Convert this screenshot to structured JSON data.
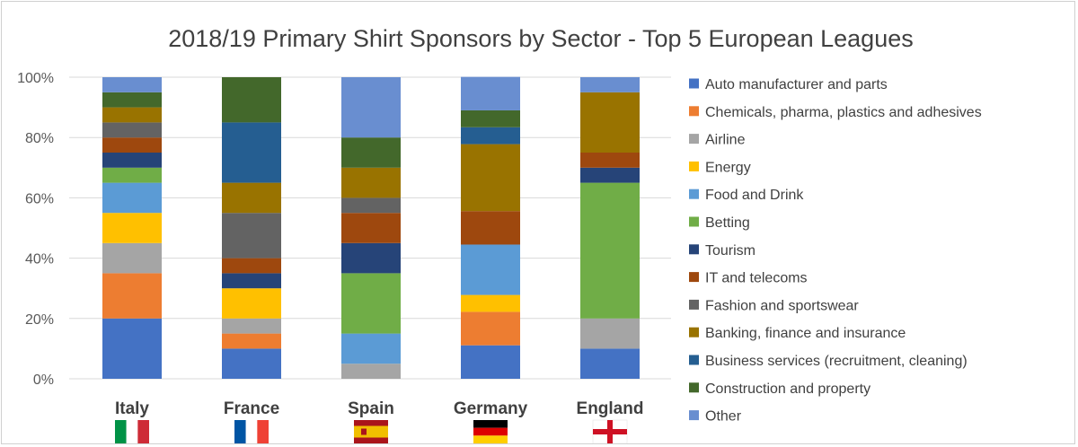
{
  "chart_data": {
    "type": "bar",
    "stacked": true,
    "title": "2018/19 Primary Shirt Sponsors by Sector - Top 5 European Leagues",
    "categories": [
      "Italy",
      "France",
      "Spain",
      "Germany",
      "England"
    ],
    "flags": [
      "italy-flag-icon",
      "france-flag-icon",
      "spain-flag-icon",
      "germany-flag-icon",
      "england-flag-icon"
    ],
    "ylim": [
      0,
      100
    ],
    "yticks": [
      "0%",
      "20%",
      "40%",
      "60%",
      "80%",
      "100%"
    ],
    "ytick_values": [
      0,
      20,
      40,
      60,
      80,
      100
    ],
    "grid": true,
    "legend_position": "right",
    "series": [
      {
        "name": "Auto manufacturer and parts",
        "color": "#4472C4",
        "values": [
          20,
          10,
          0,
          11.1,
          10
        ]
      },
      {
        "name": "Chemicals, pharma, plastics and adhesives",
        "color": "#ED7D31",
        "values": [
          15,
          5,
          0,
          11.1,
          0
        ]
      },
      {
        "name": "Airline",
        "color": "#A5A5A5",
        "values": [
          10,
          5,
          5,
          0,
          10
        ]
      },
      {
        "name": "Energy",
        "color": "#FFC000",
        "values": [
          10,
          10,
          0,
          5.6,
          0
        ]
      },
      {
        "name": "Food and Drink",
        "color": "#5B9BD5",
        "values": [
          10,
          0,
          10,
          16.7,
          0
        ]
      },
      {
        "name": "Betting",
        "color": "#70AD47",
        "values": [
          5,
          0,
          20,
          0,
          45
        ]
      },
      {
        "name": "Tourism",
        "color": "#264478",
        "values": [
          5,
          5,
          10,
          0,
          5
        ]
      },
      {
        "name": "IT and telecoms",
        "color": "#9E480E",
        "values": [
          5,
          5,
          10,
          11.1,
          5
        ]
      },
      {
        "name": "Fashion and sportswear",
        "color": "#636363",
        "values": [
          5,
          15,
          5,
          0,
          0
        ]
      },
      {
        "name": "Banking, finance and insurance",
        "color": "#997300",
        "values": [
          5,
          10,
          10,
          22.2,
          20
        ]
      },
      {
        "name": "Business services (recruitment, cleaning)",
        "color": "#255E91",
        "values": [
          0,
          20,
          0,
          5.6,
          0
        ]
      },
      {
        "name": "Construction and property",
        "color": "#43682B",
        "values": [
          5,
          15,
          10,
          5.6,
          0
        ]
      },
      {
        "name": "Other",
        "color": "#698ED0",
        "values": [
          5,
          0,
          20,
          11.1,
          5
        ]
      }
    ]
  }
}
